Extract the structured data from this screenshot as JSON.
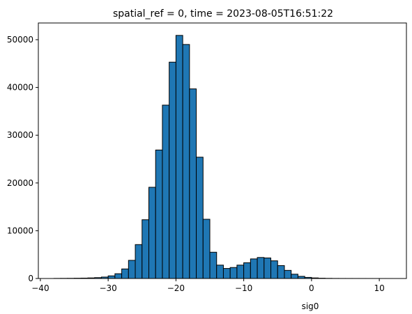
{
  "chart_data": {
    "type": "bar",
    "title": "spatial_ref = 0, time = 2023-08-05T16:51:22",
    "xlabel": "sig0",
    "ylabel": "",
    "xlim": [
      -40.3,
      14.0
    ],
    "ylim": [
      0,
      53500
    ],
    "xticks": [
      -40,
      -30,
      -20,
      -10,
      0,
      10
    ],
    "yticks": [
      0,
      10000,
      20000,
      30000,
      40000,
      50000
    ],
    "bar_color": "#1f77b4",
    "edge_color": "#000000",
    "grid": false,
    "bins": [
      {
        "x0": -38.0,
        "x1": -37.0,
        "value": 20
      },
      {
        "x0": -37.0,
        "x1": -36.0,
        "value": 30
      },
      {
        "x0": -36.0,
        "x1": -35.0,
        "value": 40
      },
      {
        "x0": -35.0,
        "x1": -34.0,
        "value": 60
      },
      {
        "x0": -34.0,
        "x1": -33.0,
        "value": 80
      },
      {
        "x0": -33.0,
        "x1": -32.0,
        "value": 120
      },
      {
        "x0": -32.0,
        "x1": -31.0,
        "value": 180
      },
      {
        "x0": -31.0,
        "x1": -30.0,
        "value": 300
      },
      {
        "x0": -30.0,
        "x1": -29.0,
        "value": 550
      },
      {
        "x0": -29.0,
        "x1": -28.0,
        "value": 1000
      },
      {
        "x0": -28.0,
        "x1": -27.0,
        "value": 2000
      },
      {
        "x0": -27.0,
        "x1": -26.0,
        "value": 3800
      },
      {
        "x0": -26.0,
        "x1": -25.0,
        "value": 7100
      },
      {
        "x0": -25.0,
        "x1": -24.0,
        "value": 12300
      },
      {
        "x0": -24.0,
        "x1": -23.0,
        "value": 19100
      },
      {
        "x0": -23.0,
        "x1": -22.0,
        "value": 26900
      },
      {
        "x0": -22.0,
        "x1": -21.0,
        "value": 36300
      },
      {
        "x0": -21.0,
        "x1": -20.0,
        "value": 45300
      },
      {
        "x0": -20.0,
        "x1": -19.0,
        "value": 50900
      },
      {
        "x0": -19.0,
        "x1": -18.0,
        "value": 49000
      },
      {
        "x0": -18.0,
        "x1": -17.0,
        "value": 39700
      },
      {
        "x0": -17.0,
        "x1": -16.0,
        "value": 25400
      },
      {
        "x0": -16.0,
        "x1": -15.0,
        "value": 12400
      },
      {
        "x0": -15.0,
        "x1": -14.0,
        "value": 5500
      },
      {
        "x0": -14.0,
        "x1": -13.0,
        "value": 2800
      },
      {
        "x0": -13.0,
        "x1": -12.0,
        "value": 2100
      },
      {
        "x0": -12.0,
        "x1": -11.0,
        "value": 2300
      },
      {
        "x0": -11.0,
        "x1": -10.0,
        "value": 2800
      },
      {
        "x0": -10.0,
        "x1": -9.0,
        "value": 3300
      },
      {
        "x0": -9.0,
        "x1": -8.0,
        "value": 4100
      },
      {
        "x0": -8.0,
        "x1": -7.0,
        "value": 4400
      },
      {
        "x0": -7.0,
        "x1": -6.0,
        "value": 4300
      },
      {
        "x0": -6.0,
        "x1": -5.0,
        "value": 3700
      },
      {
        "x0": -5.0,
        "x1": -4.0,
        "value": 2700
      },
      {
        "x0": -4.0,
        "x1": -3.0,
        "value": 1700
      },
      {
        "x0": -3.0,
        "x1": -2.0,
        "value": 900
      },
      {
        "x0": -2.0,
        "x1": -1.0,
        "value": 450
      },
      {
        "x0": -1.0,
        "x1": 0.0,
        "value": 230
      },
      {
        "x0": 0.0,
        "x1": 1.0,
        "value": 120
      },
      {
        "x0": 1.0,
        "x1": 2.0,
        "value": 60
      },
      {
        "x0": 2.0,
        "x1": 3.0,
        "value": 30
      },
      {
        "x0": 3.0,
        "x1": 4.0,
        "value": 15
      },
      {
        "x0": 4.0,
        "x1": 5.0,
        "value": 10
      },
      {
        "x0": 5.0,
        "x1": 6.0,
        "value": 8
      },
      {
        "x0": 6.0,
        "x1": 7.0,
        "value": 6
      },
      {
        "x0": 7.0,
        "x1": 8.0,
        "value": 5
      },
      {
        "x0": 8.0,
        "x1": 9.0,
        "value": 4
      },
      {
        "x0": 9.0,
        "x1": 10.0,
        "value": 3
      },
      {
        "x0": 10.0,
        "x1": 11.0,
        "value": 2
      },
      {
        "x0": 11.0,
        "x1": 12.0,
        "value": 1
      }
    ]
  }
}
